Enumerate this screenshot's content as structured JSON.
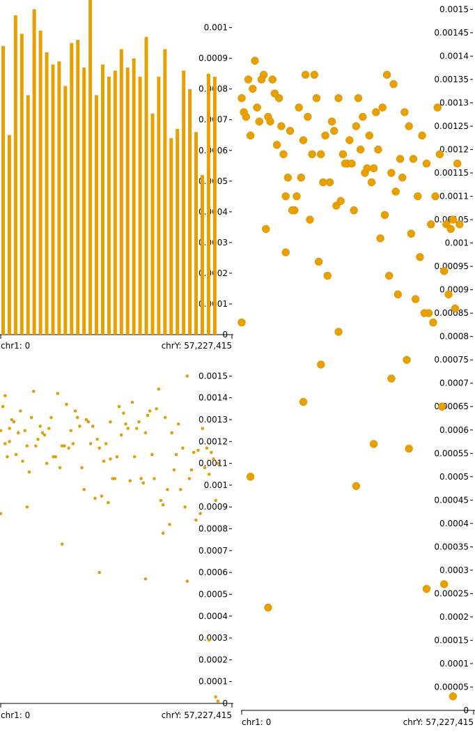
{
  "colors": {
    "mark": "#e8a000",
    "mark_stroke": "#d18f00",
    "axis": "#000000",
    "background": "#ffffff"
  },
  "chart_data": [
    {
      "type": "bar",
      "name": "genome-bar-panel",
      "ylim": [
        0,
        0.00109
      ],
      "y_ticks": [
        0,
        0.0001,
        0.0002,
        0.0003,
        0.0004,
        0.0005,
        0.0006,
        0.0007,
        0.0008,
        0.0009,
        0.001
      ],
      "y_tick_labels": [
        "0",
        "0.0001",
        "0.0002",
        "0.0003",
        "0.0004",
        "0.0005",
        "0.0006",
        "0.0007",
        "0.0008",
        "0.0009",
        "0.001"
      ],
      "x_start_label": "chr1: 0",
      "x_end_label": "chrY: 57,227,415",
      "values": [
        0.00094,
        0.00065,
        0.00104,
        0.00098,
        0.00078,
        0.00106,
        0.00099,
        0.00092,
        0.00088,
        0.00089,
        0.00081,
        0.00095,
        0.00096,
        0.00087,
        0.0011,
        0.00078,
        0.00088,
        0.00084,
        0.00086,
        0.00093,
        0.00087,
        0.0009,
        0.00084,
        0.00097,
        0.00072,
        0.00084,
        0.00093,
        0.00064,
        0.00067,
        0.00086,
        0.0008,
        0.00066,
        0.00052,
        0.00085,
        0.00084
      ]
    },
    {
      "type": "scatter",
      "name": "genome-scatter-small",
      "ylim": [
        0,
        0.00153
      ],
      "y_ticks": [
        0,
        0.0001,
        0.0002,
        0.0003,
        0.0004,
        0.0005,
        0.0006,
        0.0007,
        0.0008,
        0.0009,
        0.001,
        0.0011,
        0.0012,
        0.0013,
        0.0014,
        0.0015
      ],
      "y_tick_labels": [
        "0",
        "0.0001",
        "0.0002",
        "0.0003",
        "0.0004",
        "0.0005",
        "0.0006",
        "0.0007",
        "0.0008",
        "0.0009",
        "0.001",
        "0.0011",
        "0.0012",
        "0.0013",
        "0.0014",
        "0.0015"
      ],
      "x_start_label": "chr1: 0",
      "x_end_label": "chrY: 57,227,415",
      "x": [
        0.0,
        0.01,
        0.02,
        0.04,
        0.05,
        0.07,
        0.09,
        0.11,
        0.12,
        0.14,
        0.16,
        0.18,
        0.19,
        0.21,
        0.23,
        0.25,
        0.27,
        0.28,
        0.3,
        0.32,
        0.34,
        0.35,
        0.37,
        0.39,
        0.41,
        0.43,
        0.44,
        0.46,
        0.48,
        0.5,
        0.52,
        0.53,
        0.55,
        0.57,
        0.59,
        0.61,
        0.62,
        0.64,
        0.66,
        0.68,
        0.7,
        0.71,
        0.73,
        0.75,
        0.77,
        0.79,
        0.8,
        0.82,
        0.84,
        0.86,
        0.88,
        0.89,
        0.91,
        0.93,
        0.95,
        0.96,
        0.98,
        0.02,
        0.06,
        0.1,
        0.15,
        0.2,
        0.24,
        0.29,
        0.33,
        0.38,
        0.42,
        0.47,
        0.51,
        0.56,
        0.6,
        0.65,
        0.69,
        0.74,
        0.78,
        0.83,
        0.87,
        0.92,
        0.97,
        0.03,
        0.08,
        0.13,
        0.17,
        0.22,
        0.26,
        0.31,
        0.36,
        0.4,
        0.45,
        0.49,
        0.54,
        0.58,
        0.63,
        0.67,
        0.72,
        0.76,
        0.81,
        0.85,
        0.9,
        0.94,
        0.99,
        0.0,
        0.04,
        0.12,
        0.28,
        0.45,
        0.5,
        0.66,
        0.74,
        0.85,
        0.95,
        0.98,
        0.99
      ],
      "y": [
        0.00125,
        0.00136,
        0.00119,
        0.00126,
        0.0013,
        0.00114,
        0.00134,
        0.00125,
        0.00118,
        0.00131,
        0.00118,
        0.00127,
        0.00124,
        0.0011,
        0.00131,
        0.00113,
        0.00108,
        0.00118,
        0.00137,
        0.00125,
        0.00134,
        0.00131,
        0.00108,
        0.0013,
        0.00119,
        0.00094,
        0.00121,
        0.00095,
        0.00119,
        0.00129,
        0.00103,
        0.00113,
        0.00123,
        0.00128,
        0.00102,
        0.00113,
        0.00126,
        0.00103,
        0.00124,
        0.00134,
        0.00103,
        0.00135,
        0.00093,
        0.00131,
        0.00082,
        0.00107,
        0.00114,
        0.00098,
        0.0009,
        0.00103,
        0.00115,
        0.00084,
        0.00087,
        0.00108,
        0.00105,
        0.00115,
        0.00093,
        0.00141,
        0.00129,
        0.00111,
        0.00143,
        0.00123,
        0.00113,
        0.00118,
        0.00119,
        0.00098,
        0.00127,
        0.00111,
        0.00103,
        0.00133,
        0.00138,
        0.00101,
        0.00114,
        0.00091,
        0.00124,
        0.00117,
        0.00107,
        0.00126,
        0.00112,
        0.00113,
        0.00124,
        0.00106,
        0.00121,
        0.00126,
        0.00142,
        0.00117,
        0.00127,
        0.00129,
        0.00117,
        0.00092,
        0.00136,
        0.00126,
        0.00129,
        0.00132,
        0.00144,
        0.00098,
        0.00128,
        0.0015,
        0.00116,
        0.00117,
        0.0011,
        0.00087,
        0.0012,
        0.0009,
        0.00073,
        0.0006,
        0.00112,
        0.00057,
        0.00078,
        0.00056,
        0.00029,
        3e-05,
        1e-05
      ]
    },
    {
      "type": "scatter",
      "name": "genome-scatter-large",
      "ylim": [
        0,
        0.00152
      ],
      "y_ticks": [
        0,
        5e-05,
        0.0001,
        0.00015,
        0.0002,
        0.00025,
        0.0003,
        0.00035,
        0.0004,
        0.00045,
        0.0005,
        0.00055,
        0.0006,
        0.00065,
        0.0007,
        0.00075,
        0.0008,
        0.00085,
        0.0009,
        0.00095,
        0.001,
        0.00105,
        0.0011,
        0.00115,
        0.0012,
        0.00125,
        0.0013,
        0.00135,
        0.0014,
        0.00145,
        0.0015
      ],
      "y_tick_labels": [
        "0",
        "0.00005",
        "0.0001",
        "0.00015",
        "0.0002",
        "0.00025",
        "0.0003",
        "0.00035",
        "0.0004",
        "0.00045",
        "0.0005",
        "0.00055",
        "0.0006",
        "0.00065",
        "0.0007",
        "0.00075",
        "0.0008",
        "0.00085",
        "0.0009",
        "0.00095",
        "0.001",
        "0.00105",
        "0.0011",
        "0.00115",
        "0.0012",
        "0.00125",
        "0.0013",
        "0.00135",
        "0.0014",
        "0.00145",
        "0.0015"
      ],
      "x_start_label": "chr1: 0",
      "x_end_label": "chrY: 57,227,415",
      "x": [
        0.0,
        0.02,
        0.04,
        0.06,
        0.08,
        0.1,
        0.12,
        0.14,
        0.16,
        0.18,
        0.2,
        0.22,
        0.24,
        0.26,
        0.28,
        0.3,
        0.32,
        0.34,
        0.36,
        0.38,
        0.4,
        0.42,
        0.44,
        0.46,
        0.48,
        0.5,
        0.52,
        0.54,
        0.56,
        0.58,
        0.6,
        0.62,
        0.64,
        0.66,
        0.68,
        0.7,
        0.72,
        0.74,
        0.76,
        0.78,
        0.8,
        0.82,
        0.84,
        0.86,
        0.88,
        0.9,
        0.92,
        0.94,
        0.96,
        0.98,
        0.99,
        0.01,
        0.05,
        0.09,
        0.13,
        0.17,
        0.21,
        0.25,
        0.29,
        0.33,
        0.37,
        0.41,
        0.45,
        0.49,
        0.53,
        0.57,
        0.61,
        0.65,
        0.69,
        0.73,
        0.77,
        0.81,
        0.85,
        0.89,
        0.93,
        0.97,
        0.03,
        0.07,
        0.11,
        0.15,
        0.19,
        0.23,
        0.27,
        0.31,
        0.35,
        0.39,
        0.43,
        0.47,
        0.51,
        0.55,
        0.59,
        0.63,
        0.67,
        0.71,
        0.75,
        0.79,
        0.83,
        0.87,
        0.91,
        0.95,
        0.0,
        0.04,
        0.12,
        0.2,
        0.28,
        0.36,
        0.44,
        0.52,
        0.6,
        0.68,
        0.76,
        0.84,
        0.92,
        0.96
      ],
      "y": [
        0.00131,
        0.00127,
        0.00123,
        0.00139,
        0.00126,
        0.00136,
        0.00127,
        0.00135,
        0.00121,
        0.00125,
        0.0011,
        0.00124,
        0.00107,
        0.00129,
        0.00122,
        0.00127,
        0.00119,
        0.00131,
        0.00119,
        0.00123,
        0.00113,
        0.00124,
        0.00131,
        0.00119,
        0.00117,
        0.00117,
        0.00125,
        0.0012,
        0.00115,
        0.00123,
        0.00116,
        0.0012,
        0.00129,
        0.00136,
        0.00115,
        0.00111,
        0.00118,
        0.00128,
        0.00125,
        0.00118,
        0.0011,
        0.00123,
        0.00117,
        0.00104,
        0.0011,
        0.00119,
        0.00094,
        0.00089,
        0.00105,
        0.00117,
        0.00104,
        0.00128,
        0.00133,
        0.00135,
        0.00126,
        0.00131,
        0.00114,
        0.0011,
        0.00136,
        0.00136,
        0.00113,
        0.00126,
        0.00109,
        0.00122,
        0.00131,
        0.00116,
        0.00128,
        0.00106,
        0.00134,
        0.00114,
        0.00102,
        0.00097,
        0.00085,
        0.00129,
        0.00104,
        0.00086,
        0.00135,
        0.00129,
        0.00103,
        0.00132,
        0.00119,
        0.00107,
        0.00114,
        0.00105,
        0.00096,
        0.00093,
        0.00108,
        0.00117,
        0.00107,
        0.00127,
        0.00113,
        0.00101,
        0.00093,
        0.00089,
        0.00075,
        0.00088,
        0.00085,
        0.00083,
        0.00065,
        0.00103,
        0.00083,
        0.0005,
        0.00022,
        0.00098,
        0.00066,
        0.00074,
        0.00081,
        0.00048,
        0.00057,
        0.00071,
        0.00056,
        0.00026,
        0.00027,
        3e-05
      ]
    }
  ]
}
